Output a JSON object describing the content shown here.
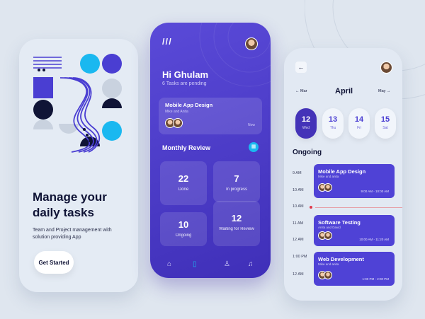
{
  "onboarding": {
    "title": "Manage your daily tasks",
    "subtitle": "Team and Project management with solution providing App",
    "cta": "Get Started"
  },
  "home": {
    "greeting": "Hi Ghulam",
    "pending": "6 Tasks are pending",
    "featured": {
      "title": "Mobile App Design",
      "people": "Mike and Anita",
      "time": "Now"
    },
    "section": "Monthly Review",
    "stats": [
      {
        "value": "22",
        "label": "Done"
      },
      {
        "value": "7",
        "label": "In progress"
      },
      {
        "value": "10",
        "label": "Ongoing"
      },
      {
        "value": "12",
        "label": "Waiting for Review"
      }
    ],
    "nav": [
      "home-icon",
      "document-icon",
      "profile-icon",
      "bell-icon"
    ]
  },
  "schedule": {
    "month": "April",
    "prev": "Mar",
    "next": "May",
    "days": [
      {
        "num": "12",
        "name": "Wed",
        "selected": true
      },
      {
        "num": "13",
        "name": "Thu"
      },
      {
        "num": "14",
        "name": "Fri"
      },
      {
        "num": "15",
        "name": "Sat"
      }
    ],
    "section": "Ongoing",
    "times": [
      "9 AM",
      "10 AM",
      "10 AM",
      "11 AM",
      "12 AM",
      "1:00 PM",
      "12 AM"
    ],
    "events": [
      {
        "title": "Mobile App Design",
        "people": "Mike and anita",
        "time": "9:00 AM - 10:00 AM"
      },
      {
        "title": "Software Testing",
        "people": "Anita and David",
        "time": "10:00 AM - 11:20 AM"
      },
      {
        "title": "Web Development",
        "people": "Mike and anita",
        "time": "1:00 PM - 2:00 PM"
      }
    ]
  },
  "colors": {
    "primary": "#4f42d6",
    "accent": "#1ab8f0",
    "dark": "#101436"
  }
}
